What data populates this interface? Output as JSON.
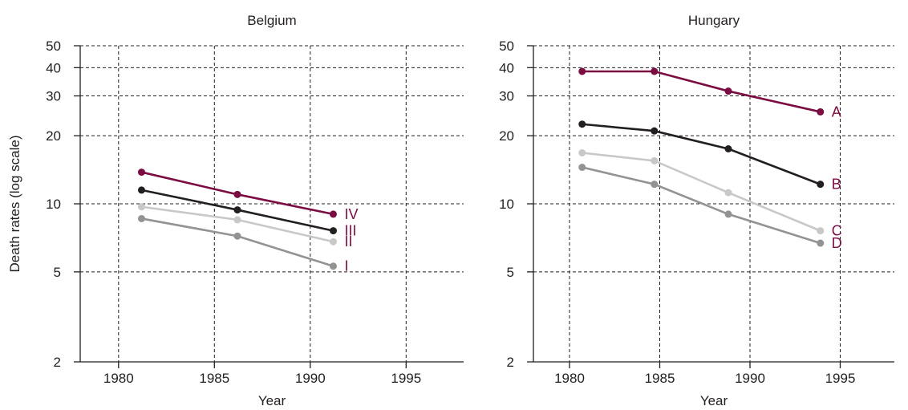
{
  "figure": {
    "ylabel": "Death rates (log scale)"
  },
  "chart_data": [
    {
      "type": "line",
      "title": "Belgium",
      "xlabel": "Year",
      "ylabel": "Death rates (log scale)",
      "yscale": "log",
      "xlim": [
        1978,
        1998
      ],
      "ylim": [
        2,
        50
      ],
      "xticks": [
        1980,
        1985,
        1990,
        1995
      ],
      "yticks": [
        2,
        5,
        10,
        20,
        30,
        40,
        50
      ],
      "grid": true,
      "series": [
        {
          "name": "IV",
          "color": "#7b0c42",
          "x": [
            1981.2,
            1986.2,
            1991.2
          ],
          "y": [
            13.8,
            11.0,
            9.0
          ]
        },
        {
          "name": "III",
          "color": "#231f20",
          "x": [
            1981.2,
            1986.2,
            1991.2
          ],
          "y": [
            11.5,
            9.4,
            7.6
          ]
        },
        {
          "name": "II",
          "color": "#c8c8c8",
          "x": [
            1981.2,
            1986.2,
            1991.2
          ],
          "y": [
            9.7,
            8.5,
            6.8
          ]
        },
        {
          "name": "I",
          "color": "#939393",
          "x": [
            1981.2,
            1986.2,
            1991.2
          ],
          "y": [
            8.6,
            7.2,
            5.3
          ]
        }
      ]
    },
    {
      "type": "line",
      "title": "Hungary",
      "xlabel": "Year",
      "ylabel": "",
      "yscale": "log",
      "xlim": [
        1978,
        1998
      ],
      "ylim": [
        2,
        50
      ],
      "xticks": [
        1980,
        1985,
        1990,
        1995
      ],
      "yticks": [
        2,
        5,
        10,
        20,
        30,
        40,
        50
      ],
      "grid": true,
      "series": [
        {
          "name": "A",
          "color": "#7b0c42",
          "x": [
            1980.7,
            1984.7,
            1988.8,
            1993.9
          ],
          "y": [
            38.5,
            38.5,
            31.5,
            25.5
          ]
        },
        {
          "name": "B",
          "color": "#231f20",
          "x": [
            1980.7,
            1984.7,
            1988.8,
            1993.9
          ],
          "y": [
            22.5,
            21.0,
            17.5,
            12.2
          ]
        },
        {
          "name": "C",
          "color": "#c8c8c8",
          "x": [
            1980.7,
            1984.7,
            1988.8,
            1993.9
          ],
          "y": [
            16.8,
            15.5,
            11.2,
            7.6
          ]
        },
        {
          "name": "D",
          "color": "#939393",
          "x": [
            1980.7,
            1984.7,
            1988.8,
            1993.9
          ],
          "y": [
            14.5,
            12.2,
            9.0,
            6.7
          ]
        }
      ]
    }
  ]
}
